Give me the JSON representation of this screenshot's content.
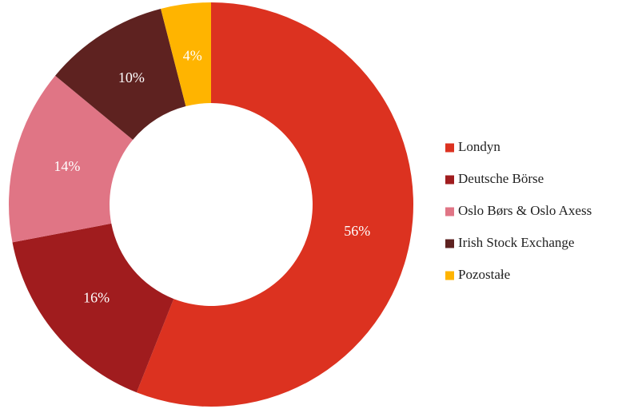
{
  "chart_data": {
    "type": "donut",
    "categories": [
      "Londyn",
      "Deutsche Börse",
      "Oslo Børs & Oslo Axess",
      "Irish Stock Exchange",
      "Pozostałe"
    ],
    "values": [
      56,
      16,
      14,
      10,
      4
    ],
    "value_labels": [
      "56%",
      "16%",
      "14%",
      "10%",
      "4%"
    ],
    "colors": [
      "#dc3220",
      "#a01c1e",
      "#e07585",
      "#5e2220",
      "#ffb400"
    ],
    "legend": "right"
  }
}
